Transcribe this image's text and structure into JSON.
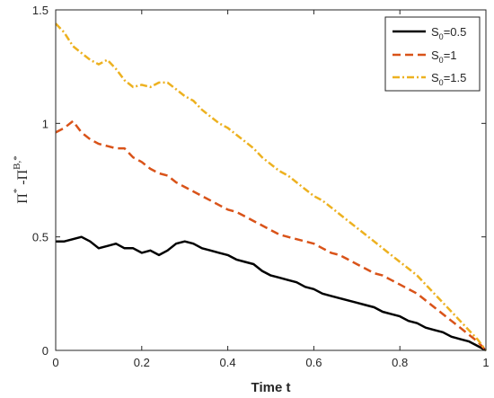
{
  "chart_data": {
    "type": "line",
    "xlabel": "Time t",
    "ylabel": {
      "part1": "Π",
      "sup1": "*",
      "part2": " -Π",
      "sup2": "B,*"
    },
    "xlim": [
      0,
      1
    ],
    "ylim": [
      0,
      1.5
    ],
    "x_ticks": [
      0,
      0.2,
      0.4,
      0.6,
      0.8,
      1
    ],
    "x_tick_labels": [
      "0",
      "0.2",
      "0.4",
      "0.6",
      "0.8",
      "1"
    ],
    "y_ticks": [
      0,
      0.5,
      1,
      1.5
    ],
    "y_tick_labels": [
      "0",
      "0.5",
      "1",
      "1.5"
    ],
    "grid": false,
    "legend_position": "top-right",
    "series": [
      {
        "legend_main": "S",
        "legend_sub": "0",
        "legend_rest": "=0.5",
        "color": "#000000",
        "style": "solid",
        "x": [
          0,
          0.02,
          0.04,
          0.06,
          0.08,
          0.1,
          0.12,
          0.14,
          0.16,
          0.18,
          0.2,
          0.22,
          0.24,
          0.26,
          0.28,
          0.3,
          0.32,
          0.34,
          0.36,
          0.38,
          0.4,
          0.42,
          0.44,
          0.46,
          0.48,
          0.5,
          0.52,
          0.54,
          0.56,
          0.58,
          0.6,
          0.62,
          0.64,
          0.66,
          0.68,
          0.7,
          0.72,
          0.74,
          0.76,
          0.78,
          0.8,
          0.82,
          0.84,
          0.86,
          0.88,
          0.9,
          0.92,
          0.94,
          0.96,
          0.98,
          1.0
        ],
        "y": [
          0.48,
          0.48,
          0.49,
          0.5,
          0.48,
          0.45,
          0.46,
          0.47,
          0.45,
          0.45,
          0.43,
          0.44,
          0.42,
          0.44,
          0.47,
          0.48,
          0.47,
          0.45,
          0.44,
          0.43,
          0.42,
          0.4,
          0.39,
          0.38,
          0.35,
          0.33,
          0.32,
          0.31,
          0.3,
          0.28,
          0.27,
          0.25,
          0.24,
          0.23,
          0.22,
          0.21,
          0.2,
          0.19,
          0.17,
          0.16,
          0.15,
          0.13,
          0.12,
          0.1,
          0.09,
          0.08,
          0.06,
          0.05,
          0.04,
          0.02,
          0.0
        ]
      },
      {
        "legend_main": "S",
        "legend_sub": "0",
        "legend_rest": "=1",
        "color": "#D95319",
        "style": "dashed",
        "x": [
          0,
          0.02,
          0.04,
          0.06,
          0.08,
          0.1,
          0.12,
          0.14,
          0.16,
          0.18,
          0.2,
          0.22,
          0.24,
          0.26,
          0.28,
          0.3,
          0.32,
          0.34,
          0.36,
          0.38,
          0.4,
          0.42,
          0.44,
          0.46,
          0.48,
          0.5,
          0.52,
          0.54,
          0.56,
          0.58,
          0.6,
          0.62,
          0.64,
          0.66,
          0.68,
          0.7,
          0.72,
          0.74,
          0.76,
          0.78,
          0.8,
          0.82,
          0.84,
          0.86,
          0.88,
          0.9,
          0.92,
          0.94,
          0.96,
          0.98,
          1.0
        ],
        "y": [
          0.96,
          0.98,
          1.01,
          0.96,
          0.93,
          0.91,
          0.9,
          0.89,
          0.89,
          0.85,
          0.83,
          0.8,
          0.78,
          0.77,
          0.74,
          0.72,
          0.7,
          0.68,
          0.66,
          0.64,
          0.62,
          0.61,
          0.59,
          0.57,
          0.55,
          0.53,
          0.51,
          0.5,
          0.49,
          0.48,
          0.47,
          0.45,
          0.43,
          0.42,
          0.4,
          0.38,
          0.36,
          0.34,
          0.33,
          0.31,
          0.29,
          0.27,
          0.25,
          0.22,
          0.19,
          0.16,
          0.13,
          0.1,
          0.07,
          0.04,
          0.0
        ]
      },
      {
        "legend_main": "S",
        "legend_sub": "0",
        "legend_rest": "=1.5",
        "color": "#EDB120",
        "style": "dashdot",
        "x": [
          0,
          0.02,
          0.04,
          0.06,
          0.08,
          0.1,
          0.12,
          0.14,
          0.16,
          0.18,
          0.2,
          0.22,
          0.24,
          0.26,
          0.28,
          0.3,
          0.32,
          0.34,
          0.36,
          0.38,
          0.4,
          0.42,
          0.44,
          0.46,
          0.48,
          0.5,
          0.52,
          0.54,
          0.56,
          0.58,
          0.6,
          0.62,
          0.64,
          0.66,
          0.68,
          0.7,
          0.72,
          0.74,
          0.76,
          0.78,
          0.8,
          0.82,
          0.84,
          0.86,
          0.88,
          0.9,
          0.92,
          0.94,
          0.96,
          0.98,
          1.0
        ],
        "y": [
          1.44,
          1.4,
          1.34,
          1.31,
          1.28,
          1.26,
          1.28,
          1.24,
          1.19,
          1.16,
          1.17,
          1.16,
          1.18,
          1.18,
          1.15,
          1.12,
          1.1,
          1.06,
          1.03,
          1.0,
          0.98,
          0.95,
          0.92,
          0.89,
          0.85,
          0.82,
          0.79,
          0.77,
          0.74,
          0.71,
          0.68,
          0.66,
          0.63,
          0.6,
          0.57,
          0.54,
          0.51,
          0.48,
          0.45,
          0.42,
          0.39,
          0.36,
          0.33,
          0.29,
          0.25,
          0.21,
          0.17,
          0.13,
          0.09,
          0.05,
          0.0
        ]
      }
    ]
  }
}
